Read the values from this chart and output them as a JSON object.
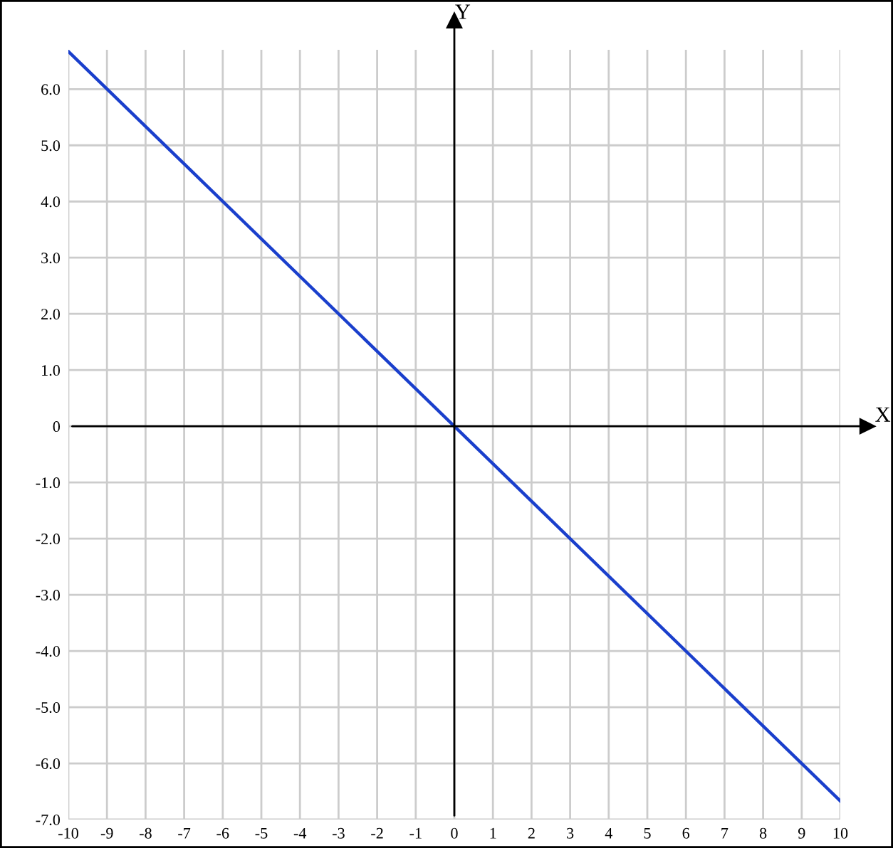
{
  "chart_data": {
    "type": "line",
    "xlabel": "X",
    "ylabel": "Y",
    "x": [
      -10,
      10
    ],
    "series": [
      {
        "color": "#1a3fcc",
        "values": [
          6.67,
          -6.67
        ]
      }
    ],
    "xlim": [
      -10,
      10
    ],
    "ylim": [
      -7,
      6.7
    ],
    "xticks": [
      -10,
      -9,
      -8,
      -7,
      -6,
      -5,
      -4,
      -3,
      -2,
      -1,
      0,
      1,
      2,
      3,
      4,
      5,
      6,
      7,
      8,
      9,
      10
    ],
    "yticks": [
      {
        "value": -7,
        "label": "-7.0"
      },
      {
        "value": -6,
        "label": "-6.0"
      },
      {
        "value": -5,
        "label": "-5.0"
      },
      {
        "value": -4,
        "label": "-4.0"
      },
      {
        "value": -3,
        "label": "-3.0"
      },
      {
        "value": -2,
        "label": "-2.0"
      },
      {
        "value": -1,
        "label": "-1.0"
      },
      {
        "value": 0,
        "label": "0"
      },
      {
        "value": 1,
        "label": "1.0"
      },
      {
        "value": 2,
        "label": "2.0"
      },
      {
        "value": 3,
        "label": "3.0"
      },
      {
        "value": 4,
        "label": "4.0"
      },
      {
        "value": 5,
        "label": "5.0"
      },
      {
        "value": 6,
        "label": "6.0"
      }
    ],
    "grid": true,
    "marker": "none",
    "line_style": "solid"
  }
}
